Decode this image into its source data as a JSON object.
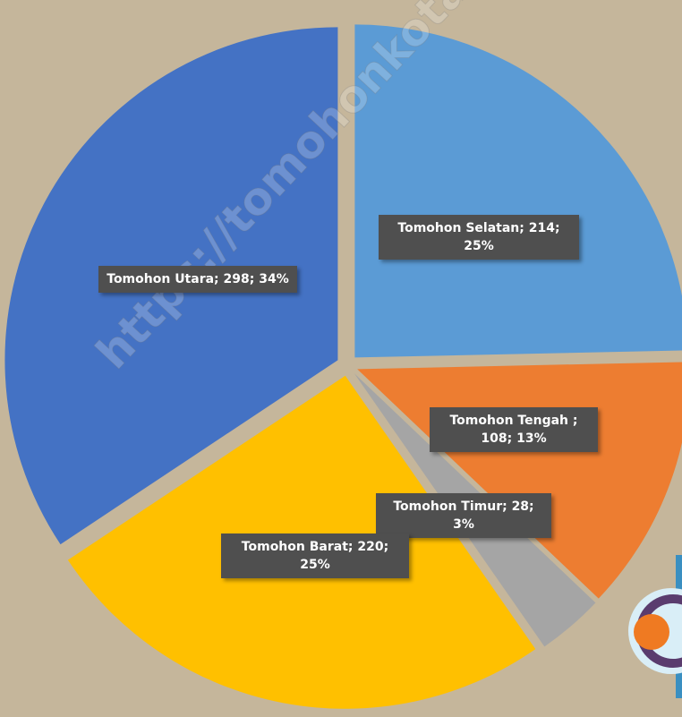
{
  "chart_data": {
    "type": "pie",
    "categories": [
      "Tomohon Selatan",
      "Tomohon Tengah",
      "Tomohon Timur",
      "Tomohon Barat",
      "Tomohon Utara"
    ],
    "values": [
      214,
      108,
      28,
      220,
      298
    ],
    "value_labels": [
      "Tomohon Selatan; 214; 25%",
      "Tomohon Tengah ; 108; 13%",
      "Tomohon Timur; 28; 3%",
      "Tomohon Barat; 220; 25%",
      "Tomohon Utara; 298; 34%"
    ],
    "colors": [
      "#5b9bd5",
      "#ed7d31",
      "#a5a5a5",
      "#ffc000",
      "#4472c4"
    ],
    "watermark": "https://tomohonkota.bp"
  }
}
